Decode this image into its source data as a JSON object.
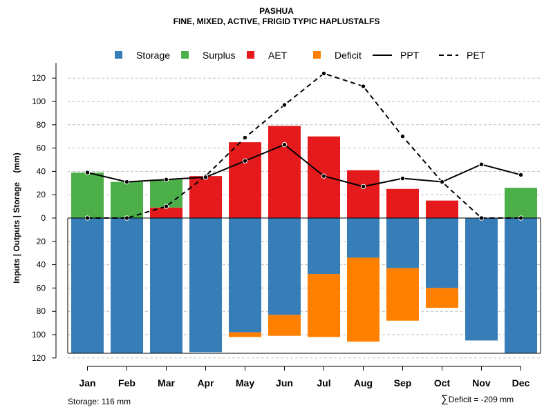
{
  "title": "PASHUA",
  "subtitle": "FINE, MIXED, ACTIVE, FRIGID TYPIC HAPLUSTALFS",
  "footer": {
    "storage_label": "Storage: 116 mm",
    "deficit_symbol": "∑",
    "deficit_label": "Deficit = -209 mm"
  },
  "colors": {
    "storage": "#377EB8",
    "surplus": "#4DAF4A",
    "aet": "#E41A1C",
    "deficit": "#FF7F00",
    "grid": "#BEBEBE"
  },
  "chart_data": {
    "type": "bar",
    "ylabel": "Inputs | Outputs | Storage    (mm)",
    "ylim": [
      -120,
      130
    ],
    "yticks": [
      120,
      100,
      80,
      60,
      40,
      20,
      0,
      -20,
      -40,
      -60,
      -80,
      -100,
      -120
    ],
    "ytick_labels": [
      "120",
      "100",
      "80",
      "60",
      "40",
      "20",
      "0",
      "20",
      "40",
      "60",
      "80",
      "100",
      "120"
    ],
    "grid": true,
    "legend_position": "top",
    "legend": [
      "Storage",
      "Surplus",
      "AET",
      "Deficit",
      "PPT",
      "PET"
    ],
    "categories": [
      "Jan",
      "Feb",
      "Mar",
      "Apr",
      "May",
      "Jun",
      "Jul",
      "Aug",
      "Sep",
      "Oct",
      "Nov",
      "Dec"
    ],
    "series": [
      {
        "name": "Storage",
        "kind": "bar_down",
        "values": [
          116,
          116,
          116,
          115,
          98,
          83,
          48,
          34,
          43,
          60,
          105,
          116
        ]
      },
      {
        "name": "Deficit",
        "kind": "bar_stack_down",
        "values": [
          0,
          0,
          0,
          0,
          4,
          18,
          54,
          72,
          45,
          17,
          0,
          0
        ]
      },
      {
        "name": "AET",
        "kind": "bar_up",
        "values": [
          0,
          0,
          9,
          36,
          65,
          79,
          70,
          41,
          25,
          15,
          0,
          0
        ]
      },
      {
        "name": "Surplus",
        "kind": "bar_stack_up",
        "values": [
          39,
          31,
          24,
          0,
          0,
          0,
          0,
          0,
          0,
          0,
          0,
          26
        ]
      },
      {
        "name": "PPT",
        "kind": "line_solid",
        "values": [
          39,
          31,
          33,
          35,
          49,
          63,
          36,
          27,
          34,
          31,
          46,
          37
        ]
      },
      {
        "name": "PET",
        "kind": "line_dashed",
        "values": [
          0,
          0,
          10,
          36,
          69,
          97,
          124,
          113,
          70,
          31,
          0,
          0
        ]
      }
    ]
  }
}
